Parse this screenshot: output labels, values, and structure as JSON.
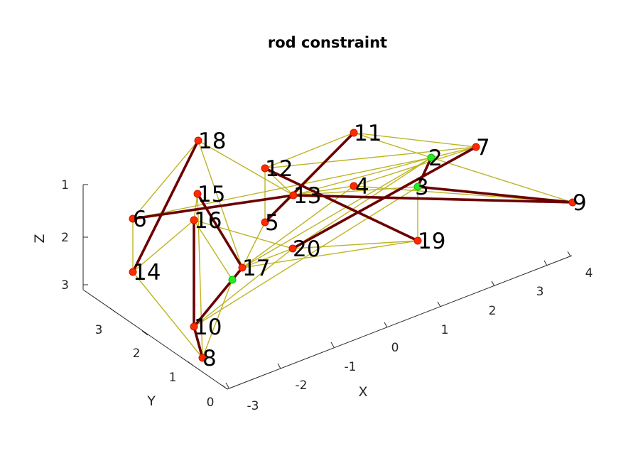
{
  "chart_data": {
    "type": "diagram",
    "title": "rod constraint",
    "axes": {
      "x": {
        "label": "X",
        "ticks": [
          "-3",
          "-2",
          "-1",
          "0",
          "1",
          "2",
          "3",
          "4"
        ]
      },
      "y": {
        "label": "Y",
        "ticks": [
          "0",
          "1",
          "2",
          "3"
        ]
      },
      "z": {
        "label": "Z",
        "ticks": [
          "1",
          "2",
          "3"
        ]
      }
    },
    "node_colors": {
      "default": "#ff2a00",
      "fixed": "#22ee22"
    },
    "edge_colors": {
      "rod": "#6b0000",
      "link": "#bdb524"
    },
    "nodes": [
      {
        "id": "2",
        "label": "2",
        "color": "fixed"
      },
      {
        "id": "3",
        "label": "3",
        "color": "fixed"
      },
      {
        "id": "4",
        "label": "4",
        "color": "default"
      },
      {
        "id": "5",
        "label": "5",
        "color": "default"
      },
      {
        "id": "6",
        "label": "6",
        "color": "default"
      },
      {
        "id": "7",
        "label": "7",
        "color": "default"
      },
      {
        "id": "8",
        "label": "8",
        "color": "default"
      },
      {
        "id": "9",
        "label": "9",
        "color": "default"
      },
      {
        "id": "10",
        "label": "10",
        "color": "default"
      },
      {
        "id": "11",
        "label": "11",
        "color": "default"
      },
      {
        "id": "12",
        "label": "12",
        "color": "default"
      },
      {
        "id": "13",
        "label": "13",
        "color": "default"
      },
      {
        "id": "14",
        "label": "14",
        "color": "default"
      },
      {
        "id": "15",
        "label": "15",
        "color": "default"
      },
      {
        "id": "16",
        "label": "16",
        "color": "default"
      },
      {
        "id": "17",
        "label": "17",
        "color": "default"
      },
      {
        "id": "18",
        "label": "18",
        "color": "default"
      },
      {
        "id": "19",
        "label": "19",
        "color": "default"
      },
      {
        "id": "20",
        "label": "20",
        "color": "default"
      },
      {
        "id": "g1",
        "label": "",
        "color": "fixed"
      }
    ],
    "rods": [
      [
        "18",
        "14"
      ],
      [
        "6",
        "13"
      ],
      [
        "13",
        "9"
      ],
      [
        "3",
        "9"
      ],
      [
        "15",
        "17"
      ],
      [
        "16",
        "10"
      ],
      [
        "10",
        "8"
      ],
      [
        "17",
        "10"
      ],
      [
        "12",
        "19"
      ],
      [
        "11",
        "5"
      ],
      [
        "7",
        "20"
      ],
      [
        "2",
        "3"
      ]
    ],
    "links": [
      [
        "18",
        "6"
      ],
      [
        "6",
        "14"
      ],
      [
        "18",
        "17"
      ],
      [
        "18",
        "13"
      ],
      [
        "6",
        "2"
      ],
      [
        "12",
        "5"
      ],
      [
        "12",
        "11"
      ],
      [
        "12",
        "7"
      ],
      [
        "12",
        "13"
      ],
      [
        "11",
        "2"
      ],
      [
        "11",
        "7"
      ],
      [
        "11",
        "13"
      ],
      [
        "7",
        "2"
      ],
      [
        "2",
        "9"
      ],
      [
        "7",
        "4"
      ],
      [
        "4",
        "9"
      ],
      [
        "2",
        "13"
      ],
      [
        "2",
        "20"
      ],
      [
        "13",
        "3"
      ],
      [
        "3",
        "19"
      ],
      [
        "20",
        "19"
      ],
      [
        "17",
        "19"
      ],
      [
        "17",
        "20"
      ],
      [
        "17",
        "2"
      ],
      [
        "17",
        "4"
      ],
      [
        "17",
        "g1"
      ],
      [
        "16",
        "g1"
      ],
      [
        "16",
        "14"
      ],
      [
        "15",
        "16"
      ],
      [
        "15",
        "8"
      ],
      [
        "14",
        "8"
      ],
      [
        "10",
        "20"
      ],
      [
        "10",
        "3"
      ],
      [
        "8",
        "g1"
      ],
      [
        "10",
        "g1"
      ],
      [
        "5",
        "13"
      ],
      [
        "5",
        "17"
      ],
      [
        "6",
        "4"
      ],
      [
        "16",
        "20"
      ]
    ]
  }
}
